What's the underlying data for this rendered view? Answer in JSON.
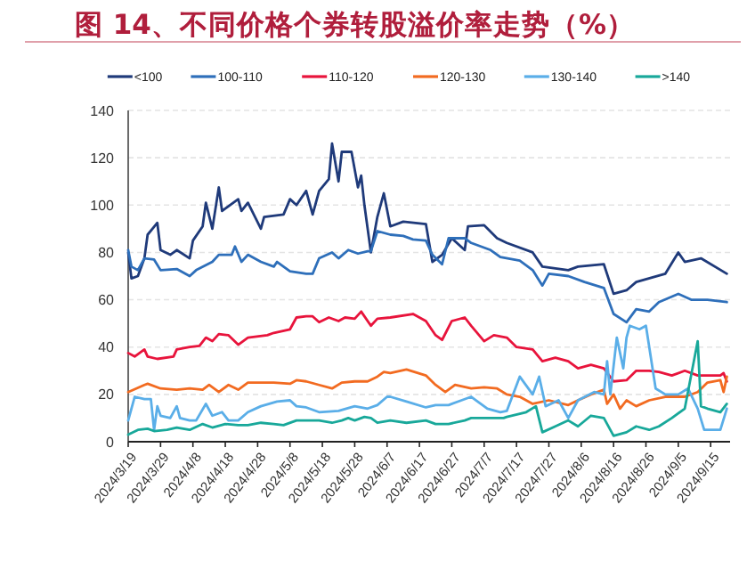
{
  "chart_data": {
    "type": "line",
    "title": "图 14、不同价格个券转股溢价率走势（%）",
    "legend": "top",
    "grid": "y",
    "marker": "none",
    "line_style": "solid",
    "xlim": [
      "2024-03-19",
      "2024-09-21"
    ],
    "xticks": [
      {
        "value": "2024-03-19",
        "label": "2024/3/19"
      },
      {
        "value": "2024-03-29",
        "label": "2024/3/29"
      },
      {
        "value": "2024-04-08",
        "label": "2024/4/8"
      },
      {
        "value": "2024-04-18",
        "label": "2024/4/18"
      },
      {
        "value": "2024-04-28",
        "label": "2024/4/28"
      },
      {
        "value": "2024-05-08",
        "label": "2024/5/8"
      },
      {
        "value": "2024-05-18",
        "label": "2024/5/18"
      },
      {
        "value": "2024-05-28",
        "label": "2024/5/28"
      },
      {
        "value": "2024-06-07",
        "label": "2024/6/7"
      },
      {
        "value": "2024-06-17",
        "label": "2024/6/17"
      },
      {
        "value": "2024-06-27",
        "label": "2024/6/27"
      },
      {
        "value": "2024-07-07",
        "label": "2024/7/7"
      },
      {
        "value": "2024-07-17",
        "label": "2024/7/17"
      },
      {
        "value": "2024-07-27",
        "label": "2024/7/27"
      },
      {
        "value": "2024-08-06",
        "label": "2024/8/6"
      },
      {
        "value": "2024-08-16",
        "label": "2024/8/16"
      },
      {
        "value": "2024-08-26",
        "label": "2024/8/26"
      },
      {
        "value": "2024-09-05",
        "label": "2024/9/5"
      },
      {
        "value": "2024-09-15",
        "label": "2024/9/15"
      }
    ],
    "ylim": [
      0,
      140
    ],
    "yticks": [
      0,
      20,
      40,
      60,
      80,
      100,
      120,
      140
    ],
    "series": [
      {
        "name": "<100",
        "color": "#1f3a7a",
        "x": [
          "2024-03-19",
          "2024-03-20",
          "2024-03-22",
          "2024-03-24",
          "2024-03-25",
          "2024-03-28",
          "2024-03-29",
          "2024-04-01",
          "2024-04-03",
          "2024-04-07",
          "2024-04-08",
          "2024-04-11",
          "2024-04-12",
          "2024-04-14",
          "2024-04-16",
          "2024-04-17",
          "2024-04-22",
          "2024-04-23",
          "2024-04-25",
          "2024-04-29",
          "2024-04-30",
          "2024-05-06",
          "2024-05-08",
          "2024-05-10",
          "2024-05-13",
          "2024-05-15",
          "2024-05-17",
          "2024-05-20",
          "2024-05-21",
          "2024-05-23",
          "2024-05-24",
          "2024-05-27",
          "2024-05-29",
          "2024-05-30",
          "2024-05-31",
          "2024-06-02",
          "2024-06-04",
          "2024-06-06",
          "2024-06-08",
          "2024-06-12",
          "2024-06-19",
          "2024-06-21",
          "2024-06-24",
          "2024-06-27",
          "2024-07-01",
          "2024-07-02",
          "2024-07-07",
          "2024-07-11",
          "2024-07-14",
          "2024-07-22",
          "2024-07-25",
          "2024-08-02",
          "2024-08-05",
          "2024-08-13",
          "2024-08-16",
          "2024-08-20",
          "2024-08-23",
          "2024-09-01",
          "2024-09-05",
          "2024-09-07",
          "2024-09-12",
          "2024-09-20"
        ],
        "values": [
          80,
          69,
          70,
          77.5,
          87.5,
          92.5,
          81,
          79,
          81,
          77.5,
          85,
          91,
          101,
          90,
          107.5,
          97.5,
          102.5,
          97.5,
          101,
          90,
          95,
          96,
          102.5,
          100,
          106,
          96,
          106,
          111,
          126,
          110,
          122.5,
          122.5,
          107.5,
          112.5,
          100,
          80,
          95,
          105,
          91,
          93,
          92,
          76,
          79,
          86,
          81,
          91,
          91.5,
          86,
          84,
          80,
          74,
          72.5,
          74,
          75,
          62.5,
          64,
          67.5,
          71,
          80,
          76,
          77.5,
          71
        ]
      },
      {
        "name": "100-110",
        "color": "#2e6fba",
        "x": [
          "2024-03-19",
          "2024-03-20",
          "2024-03-22",
          "2024-03-24",
          "2024-03-27",
          "2024-03-29",
          "2024-04-03",
          "2024-04-07",
          "2024-04-09",
          "2024-04-14",
          "2024-04-16",
          "2024-04-20",
          "2024-04-21",
          "2024-04-23",
          "2024-04-25",
          "2024-04-29",
          "2024-05-03",
          "2024-05-04",
          "2024-05-08",
          "2024-05-13",
          "2024-05-15",
          "2024-05-17",
          "2024-05-21",
          "2024-05-23",
          "2024-05-26",
          "2024-05-29",
          "2024-06-01",
          "2024-06-02",
          "2024-06-04",
          "2024-06-08",
          "2024-06-12",
          "2024-06-15",
          "2024-06-19",
          "2024-06-21",
          "2024-06-24",
          "2024-06-26",
          "2024-07-01",
          "2024-07-03",
          "2024-07-09",
          "2024-07-12",
          "2024-07-18",
          "2024-07-22",
          "2024-07-25",
          "2024-07-27",
          "2024-08-02",
          "2024-08-07",
          "2024-08-13",
          "2024-08-16",
          "2024-08-20",
          "2024-08-23",
          "2024-08-27",
          "2024-08-30",
          "2024-09-05",
          "2024-09-09",
          "2024-09-14",
          "2024-09-20"
        ],
        "values": [
          81,
          74,
          72.5,
          77.5,
          77,
          72.5,
          73,
          70,
          72.5,
          76,
          79,
          79,
          82.5,
          76,
          79,
          76,
          74,
          76,
          72,
          71,
          71,
          77.5,
          80,
          77.5,
          81,
          79.5,
          80.5,
          80.5,
          89,
          87.5,
          87,
          85.5,
          85,
          79,
          75,
          86,
          86,
          84,
          81,
          78,
          76.5,
          72.5,
          66,
          71,
          70,
          67.5,
          65,
          54,
          50.5,
          56,
          55,
          59,
          62.5,
          60,
          60,
          59
        ]
      },
      {
        "name": "110-120",
        "color": "#e8143c",
        "x": [
          "2024-03-19",
          "2024-03-21",
          "2024-03-24",
          "2024-03-25",
          "2024-03-28",
          "2024-04-02",
          "2024-04-03",
          "2024-04-07",
          "2024-04-10",
          "2024-04-12",
          "2024-04-14",
          "2024-04-16",
          "2024-04-19",
          "2024-04-22",
          "2024-04-25",
          "2024-05-01",
          "2024-05-03",
          "2024-05-08",
          "2024-05-10",
          "2024-05-13",
          "2024-05-15",
          "2024-05-17",
          "2024-05-20",
          "2024-05-23",
          "2024-05-25",
          "2024-05-28",
          "2024-05-30",
          "2024-06-02",
          "2024-06-04",
          "2024-06-08",
          "2024-06-15",
          "2024-06-19",
          "2024-06-22",
          "2024-06-24",
          "2024-06-27",
          "2024-07-01",
          "2024-07-03",
          "2024-07-07",
          "2024-07-10",
          "2024-07-14",
          "2024-07-17",
          "2024-07-22",
          "2024-07-25",
          "2024-07-29",
          "2024-08-02",
          "2024-08-05",
          "2024-08-09",
          "2024-08-13",
          "2024-08-16",
          "2024-08-20",
          "2024-08-23",
          "2024-08-27",
          "2024-08-30",
          "2024-09-03",
          "2024-09-07",
          "2024-09-11",
          "2024-09-18",
          "2024-09-19",
          "2024-09-20"
        ],
        "values": [
          37.5,
          36,
          39,
          36,
          35,
          36,
          39,
          40,
          40.5,
          44,
          42.5,
          45.5,
          45,
          41,
          44,
          45,
          46,
          47.5,
          52.5,
          53,
          53,
          50.5,
          52.5,
          51,
          52.5,
          52,
          55,
          49,
          52,
          52.5,
          54,
          51,
          45,
          43,
          51,
          52.5,
          49,
          42.5,
          45,
          44,
          40,
          39,
          34,
          35.5,
          34,
          31,
          32.5,
          31,
          25.5,
          26,
          30,
          30,
          29.5,
          28,
          30,
          28,
          28,
          29,
          25.5
        ]
      },
      {
        "name": "120-130",
        "color": "#f26b21",
        "x": [
          "2024-03-19",
          "2024-03-24",
          "2024-03-25",
          "2024-03-29",
          "2024-04-03",
          "2024-04-07",
          "2024-04-11",
          "2024-04-13",
          "2024-04-16",
          "2024-04-19",
          "2024-04-22",
          "2024-04-25",
          "2024-05-03",
          "2024-05-08",
          "2024-05-10",
          "2024-05-13",
          "2024-05-17",
          "2024-05-21",
          "2024-05-24",
          "2024-05-28",
          "2024-06-01",
          "2024-06-04",
          "2024-06-06",
          "2024-06-08",
          "2024-06-13",
          "2024-06-19",
          "2024-06-22",
          "2024-06-25",
          "2024-06-28",
          "2024-07-03",
          "2024-07-07",
          "2024-07-11",
          "2024-07-14",
          "2024-07-18",
          "2024-07-22",
          "2024-07-27",
          "2024-08-02",
          "2024-08-05",
          "2024-08-09",
          "2024-08-13",
          "2024-08-14",
          "2024-08-16",
          "2024-08-18",
          "2024-08-20",
          "2024-08-23",
          "2024-08-27",
          "2024-09-01",
          "2024-09-07",
          "2024-09-11",
          "2024-09-14",
          "2024-09-18",
          "2024-09-19",
          "2024-09-20"
        ],
        "values": [
          21,
          24,
          24.5,
          22.5,
          22,
          22.5,
          22,
          24,
          21,
          24,
          22,
          25,
          25,
          24.5,
          26,
          25.5,
          24,
          22.5,
          25,
          25.5,
          25.5,
          27.5,
          29.5,
          29,
          30.5,
          28,
          24,
          21,
          24,
          22.5,
          23,
          22.5,
          20,
          19,
          16,
          17.5,
          15.5,
          17.5,
          20,
          22,
          16,
          20,
          14,
          17.5,
          15,
          17.5,
          19,
          19,
          21,
          25,
          26,
          21,
          27.5
        ]
      },
      {
        "name": "130-140",
        "color": "#5aaee8",
        "x": [
          "2024-03-19",
          "2024-03-21",
          "2024-03-24",
          "2024-03-26",
          "2024-03-27",
          "2024-03-28",
          "2024-03-29",
          "2024-04-01",
          "2024-04-03",
          "2024-04-04",
          "2024-04-07",
          "2024-04-09",
          "2024-04-12",
          "2024-04-14",
          "2024-04-17",
          "2024-04-19",
          "2024-04-22",
          "2024-04-25",
          "2024-04-29",
          "2024-05-04",
          "2024-05-08",
          "2024-05-10",
          "2024-05-13",
          "2024-05-17",
          "2024-05-23",
          "2024-05-28",
          "2024-06-01",
          "2024-06-04",
          "2024-06-07",
          "2024-06-08",
          "2024-06-13",
          "2024-06-19",
          "2024-06-22",
          "2024-06-26",
          "2024-06-30",
          "2024-07-03",
          "2024-07-08",
          "2024-07-12",
          "2024-07-14",
          "2024-07-18",
          "2024-07-22",
          "2024-07-24",
          "2024-07-26",
          "2024-07-30",
          "2024-08-02",
          "2024-08-05",
          "2024-08-10",
          "2024-08-13",
          "2024-08-14",
          "2024-08-15",
          "2024-08-17",
          "2024-08-19",
          "2024-08-20",
          "2024-08-21",
          "2024-08-24",
          "2024-08-26",
          "2024-08-29",
          "2024-09-01",
          "2024-09-05",
          "2024-09-08",
          "2024-09-11",
          "2024-09-13",
          "2024-09-18",
          "2024-09-20"
        ],
        "values": [
          9,
          19,
          18,
          18,
          5,
          15,
          11,
          10,
          15,
          10,
          9,
          9,
          16,
          11,
          12.5,
          9,
          9,
          12.5,
          15,
          17,
          17.5,
          15,
          14.5,
          12.5,
          13,
          15,
          14,
          15.5,
          19,
          19,
          17,
          14.5,
          15.5,
          15.5,
          17.5,
          19,
          14,
          12.5,
          13,
          27.5,
          20,
          27.5,
          15,
          17.5,
          10,
          17.5,
          21,
          20,
          34,
          20,
          44,
          31,
          44,
          49,
          47.5,
          49,
          22.5,
          20,
          20,
          22.5,
          14,
          5,
          5,
          14
        ]
      },
      {
        "name": ">140",
        "color": "#18a89a",
        "x": [
          "2024-03-19",
          "2024-03-22",
          "2024-03-25",
          "2024-03-27",
          "2024-03-31",
          "2024-04-03",
          "2024-04-07",
          "2024-04-11",
          "2024-04-14",
          "2024-04-18",
          "2024-04-22",
          "2024-04-25",
          "2024-04-29",
          "2024-05-03",
          "2024-05-06",
          "2024-05-10",
          "2024-05-13",
          "2024-05-17",
          "2024-05-21",
          "2024-05-24",
          "2024-05-26",
          "2024-05-28",
          "2024-05-31",
          "2024-06-02",
          "2024-06-04",
          "2024-06-08",
          "2024-06-13",
          "2024-06-19",
          "2024-06-22",
          "2024-06-26",
          "2024-07-01",
          "2024-07-03",
          "2024-07-07",
          "2024-07-13",
          "2024-07-14",
          "2024-07-20",
          "2024-07-23",
          "2024-07-25",
          "2024-07-29",
          "2024-08-02",
          "2024-08-05",
          "2024-08-09",
          "2024-08-13",
          "2024-08-16",
          "2024-08-20",
          "2024-08-23",
          "2024-08-27",
          "2024-08-30",
          "2024-09-03",
          "2024-09-07",
          "2024-09-11",
          "2024-09-12",
          "2024-09-14",
          "2024-09-18",
          "2024-09-20"
        ],
        "values": [
          3,
          5,
          5.5,
          4.5,
          5,
          6,
          5,
          7.5,
          6,
          7.5,
          7,
          7,
          8,
          7.5,
          7,
          9,
          9,
          9,
          8,
          9,
          10,
          9,
          10.5,
          10,
          8,
          9,
          8,
          9,
          7.5,
          7.5,
          9,
          10,
          10,
          10,
          10.5,
          12.5,
          15,
          4,
          6.5,
          9,
          6.5,
          11,
          10,
          2.5,
          4,
          6.5,
          5,
          6.5,
          10,
          14,
          42.5,
          15,
          14,
          12.5,
          16
        ]
      }
    ]
  }
}
